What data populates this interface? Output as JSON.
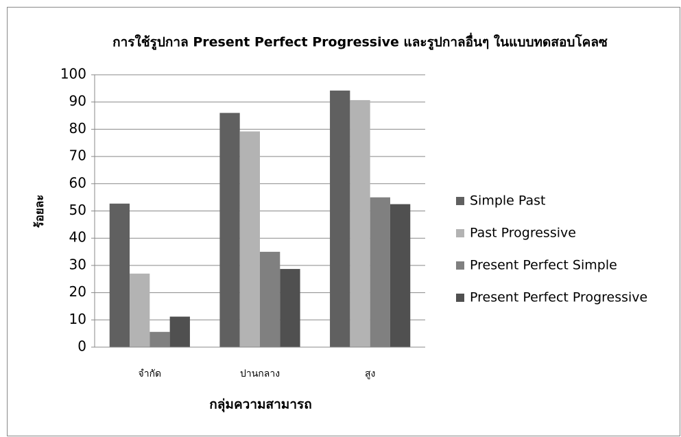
{
  "chart_data": {
    "type": "bar",
    "title": "การใช้รูปกาล Present Perfect Progressive และรูปกาลอื่นๆ ในแบบทดสอบโคลซ",
    "x_label": "กลุ่มความสามารถ",
    "y_label": "ร้อยละ",
    "categories": [
      "จำกัด",
      "ปานกลาง",
      "สูง"
    ],
    "series": [
      {
        "name": "Simple Past",
        "color": "#606060",
        "values": [
          52.7,
          86,
          94.2
        ]
      },
      {
        "name": "Past Progressive",
        "color": "#b3b3b3",
        "values": [
          27,
          79.2,
          90.7
        ]
      },
      {
        "name": "Present Perfect Simple",
        "color": "#808080",
        "values": [
          5.6,
          35,
          55
        ]
      },
      {
        "name": "Present Perfect Progressive",
        "color": "#505050",
        "values": [
          11.2,
          28.7,
          52.5
        ]
      }
    ],
    "ylim": [
      0,
      100
    ],
    "yticks": [
      0,
      10,
      20,
      30,
      40,
      50,
      60,
      70,
      80,
      90,
      100
    ],
    "grid": true,
    "legend": "right"
  }
}
